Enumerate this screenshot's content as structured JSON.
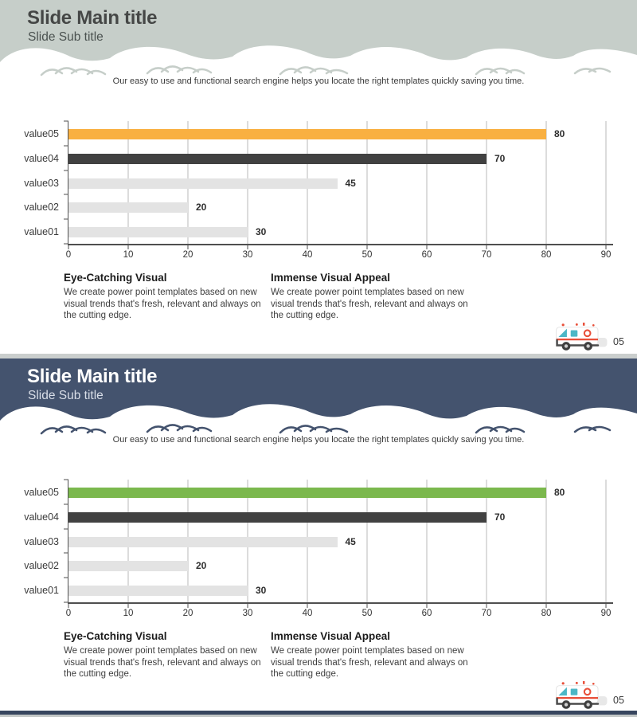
{
  "slides": [
    {
      "title": "Slide Main title",
      "subtitle": "Slide Sub title",
      "theme": "gray",
      "header_color": "#c6cec9",
      "accent_color": "#f9b041"
    },
    {
      "title": "Slide Main title",
      "subtitle": "Slide Sub title",
      "theme": "navy",
      "header_color": "#44536e",
      "accent_color": "#7bb84d"
    }
  ],
  "content": {
    "description": "Our easy to use and functional search engine helps you locate the right templates quickly saving you time.",
    "columns": [
      {
        "heading": "Eye-Catching Visual",
        "body": "We create power point templates based on new visual trends that's fresh, relevant and always on the cutting edge."
      },
      {
        "heading": "Immense Visual Appeal",
        "body": "We create power point templates based on new visual trends that's fresh, relevant and always on the cutting edge."
      }
    ],
    "page_number": "05"
  },
  "chart_data": [
    {
      "type": "bar",
      "orientation": "horizontal",
      "title": "",
      "categories": [
        "value05",
        "value04",
        "value03",
        "value02",
        "value01"
      ],
      "values": [
        80,
        70,
        45,
        20,
        30
      ],
      "bar_colors": [
        "#f9b041",
        "#414141",
        "#e3e3e3",
        "#e3e3e3",
        "#e3e3e3"
      ],
      "x_ticks": [
        0,
        10,
        20,
        30,
        40,
        50,
        60,
        70,
        80,
        90
      ],
      "xlim": [
        0,
        90
      ],
      "grid": true,
      "value_labels": true,
      "legend": false
    },
    {
      "type": "bar",
      "orientation": "horizontal",
      "title": "",
      "categories": [
        "value05",
        "value04",
        "value03",
        "value02",
        "value01"
      ],
      "values": [
        80,
        70,
        45,
        20,
        30
      ],
      "bar_colors": [
        "#7bb84d",
        "#414141",
        "#e3e3e3",
        "#e3e3e3",
        "#e3e3e3"
      ],
      "x_ticks": [
        0,
        10,
        20,
        30,
        40,
        50,
        60,
        70,
        80,
        90
      ],
      "xlim": [
        0,
        90
      ],
      "grid": true,
      "value_labels": true,
      "legend": false
    }
  ]
}
